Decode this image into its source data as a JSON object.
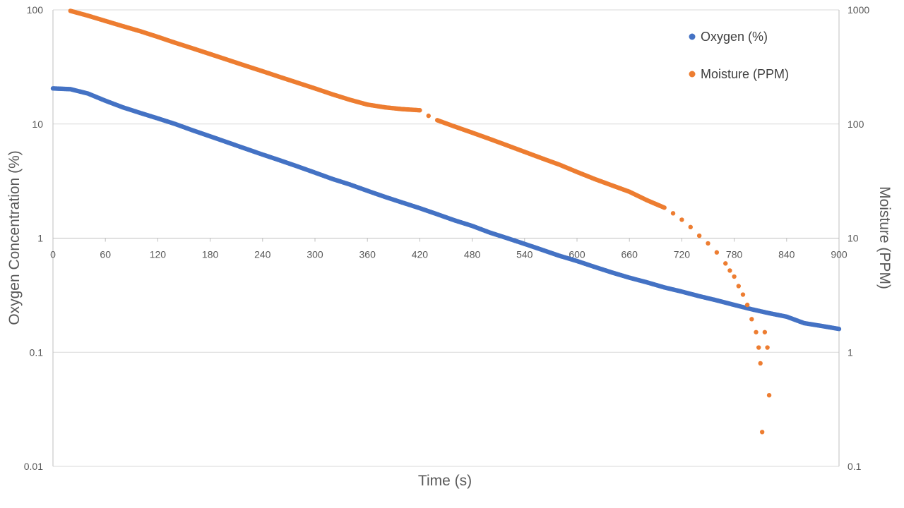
{
  "chart_data": {
    "type": "scatter",
    "title": "",
    "xlabel": "Time (s)",
    "ylabel_left": "Oxygen Concentration (%)",
    "ylabel_right": "Moisture (PPM)",
    "x_range": [
      0,
      900
    ],
    "x_ticks": [
      0,
      60,
      120,
      180,
      240,
      300,
      360,
      420,
      480,
      540,
      600,
      660,
      720,
      780,
      840,
      900
    ],
    "x_tick_labels": [
      "0",
      "60",
      "120",
      "180",
      "240",
      "300",
      "360",
      "420",
      "480",
      "540",
      "600",
      "660",
      "720",
      "780",
      "840",
      "900"
    ],
    "y_left_scale": "log",
    "y_left_range": [
      0.01,
      100
    ],
    "y_left_ticks": [
      0.01,
      0.1,
      1,
      10,
      100
    ],
    "y_left_tick_labels": [
      "0.01",
      "0.1",
      "1",
      "10",
      "100"
    ],
    "y_right_scale": "log",
    "y_right_range": [
      0.1,
      1000
    ],
    "y_right_ticks": [
      0.1,
      1,
      10,
      100,
      1000
    ],
    "y_right_tick_labels": [
      "0.1",
      "1",
      "10",
      "100",
      "1000"
    ],
    "grid": true,
    "legend_position": "top-right",
    "series": [
      {
        "name": "Oxygen (%)",
        "axis": "left",
        "color": "#4472C4",
        "x": [
          0,
          20,
          40,
          60,
          80,
          100,
          120,
          140,
          160,
          180,
          200,
          220,
          240,
          260,
          280,
          300,
          320,
          340,
          360,
          380,
          400,
          420,
          440,
          460,
          480,
          500,
          520,
          540,
          560,
          580,
          600,
          620,
          640,
          660,
          680,
          700,
          720,
          740,
          760,
          780,
          800,
          820,
          840,
          860,
          880,
          900
        ],
        "y": [
          20.5,
          20.2,
          18.5,
          16.0,
          14.0,
          12.5,
          11.2,
          10.0,
          8.8,
          7.8,
          6.9,
          6.1,
          5.4,
          4.8,
          4.25,
          3.75,
          3.3,
          2.95,
          2.6,
          2.3,
          2.05,
          1.83,
          1.62,
          1.43,
          1.28,
          1.12,
          1.0,
          0.89,
          0.79,
          0.7,
          0.63,
          0.56,
          0.5,
          0.45,
          0.41,
          0.37,
          0.34,
          0.31,
          0.285,
          0.26,
          0.238,
          0.22,
          0.205,
          0.18,
          0.17,
          0.16
        ]
      },
      {
        "name": "Moisture (PPM)",
        "axis": "right",
        "color": "#ED7D31",
        "x": [
          20,
          40,
          60,
          80,
          100,
          120,
          140,
          160,
          180,
          200,
          220,
          240,
          260,
          280,
          300,
          320,
          340,
          360,
          380,
          400,
          420,
          430,
          440,
          460,
          480,
          500,
          520,
          540,
          560,
          580,
          600,
          620,
          640,
          660,
          680,
          700,
          710,
          720,
          730,
          740,
          750,
          760,
          770,
          775,
          780,
          785,
          790,
          795,
          800,
          805,
          808,
          810,
          812,
          815,
          818,
          820
        ],
        "y": [
          980,
          890,
          800,
          720,
          650,
          580,
          515,
          460,
          410,
          365,
          325,
          290,
          258,
          230,
          205,
          182,
          163,
          148,
          140,
          135,
          132,
          118,
          108,
          95,
          84,
          74,
          65,
          57,
          50,
          44,
          38,
          33,
          29,
          25.5,
          21.5,
          18.5,
          16.5,
          14.5,
          12.5,
          10.5,
          9.0,
          7.5,
          6.0,
          5.2,
          4.6,
          3.8,
          3.2,
          2.6,
          1.95,
          1.5,
          1.1,
          0.8,
          0.2,
          1.5,
          1.1,
          0.42
        ]
      }
    ]
  }
}
